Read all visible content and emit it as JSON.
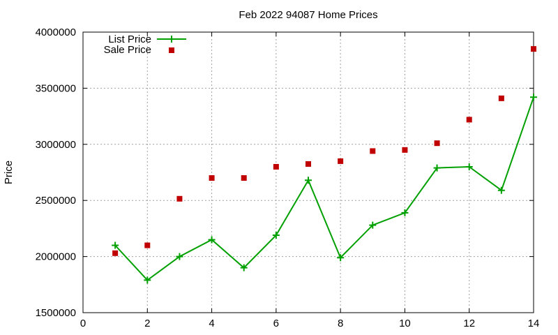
{
  "chart_data": {
    "type": "line",
    "title": "Feb 2022 94087 Home Prices",
    "xlabel": "",
    "ylabel": "Price",
    "xlim": [
      0,
      14
    ],
    "ylim": [
      1500000,
      4000000
    ],
    "x_ticks": [
      "0",
      "2",
      "4",
      "6",
      "8",
      "10",
      "12",
      "14"
    ],
    "y_ticks": [
      "1500000",
      "2000000",
      "2500000",
      "3000000",
      "3500000",
      "4000000"
    ],
    "grid": true,
    "legend_position": "top-left",
    "series": [
      {
        "name": "List Price",
        "style": "line-with-plus-markers",
        "color": "#00a000",
        "x": [
          1,
          2,
          3,
          4,
          5,
          6,
          7,
          8,
          9,
          10,
          11,
          12,
          13,
          14
        ],
        "values": [
          2100000,
          1790000,
          2000000,
          2150000,
          1900000,
          2190000,
          2680000,
          1990000,
          2280000,
          2390000,
          2790000,
          2800000,
          2590000,
          3420000
        ]
      },
      {
        "name": "Sale Price",
        "style": "square-markers",
        "color": "#c00000",
        "x": [
          1,
          2,
          3,
          4,
          5,
          6,
          7,
          8,
          9,
          10,
          11,
          12,
          13,
          14
        ],
        "values": [
          2030000,
          2100000,
          2515000,
          2700000,
          2700000,
          2800000,
          2825000,
          2850000,
          2940000,
          2950000,
          3010000,
          3220000,
          3410000,
          3850000
        ]
      }
    ]
  }
}
